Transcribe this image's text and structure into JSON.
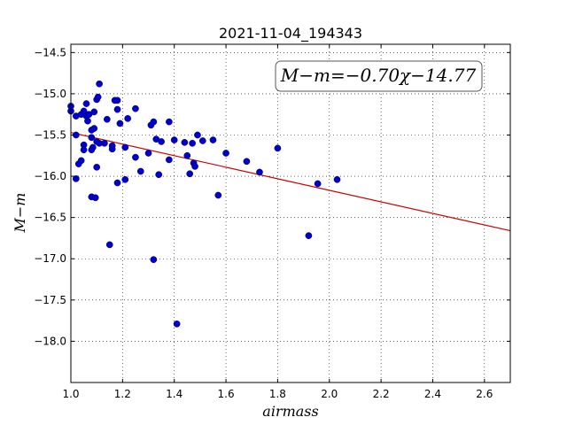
{
  "chart_data": {
    "type": "scatter",
    "title": "2021-11-04_194343",
    "xlabel": "airmass",
    "ylabel": "M−m",
    "xlim": [
      1.0,
      2.7
    ],
    "ylim": [
      -18.5,
      -14.4
    ],
    "x_ticks": [
      "1.0",
      "1.2",
      "1.4",
      "1.6",
      "1.8",
      "2.0",
      "2.2",
      "2.4",
      "2.6"
    ],
    "x_tick_values": [
      1.0,
      1.2,
      1.4,
      1.6,
      1.8,
      2.0,
      2.2,
      2.4,
      2.6
    ],
    "y_ticks": [
      "−14.5",
      "−15.0",
      "−15.5",
      "−16.0",
      "−16.5",
      "−17.0",
      "−17.5",
      "−18.0"
    ],
    "y_tick_values": [
      -14.5,
      -15.0,
      -15.5,
      -16.0,
      -16.5,
      -17.0,
      -17.5,
      -18.0
    ],
    "grid": true,
    "annotation": "M−m=−0.70χ−14.77",
    "fit": {
      "slope": -0.7,
      "intercept": -14.77,
      "color": "#cc0000"
    },
    "point_color": "#0000cc",
    "points": [
      {
        "x": 1.0,
        "y": -15.21
      },
      {
        "x": 1.0,
        "y": -15.15
      },
      {
        "x": 1.02,
        "y": -15.27
      },
      {
        "x": 1.04,
        "y": -15.25
      },
      {
        "x": 1.05,
        "y": -15.21
      },
      {
        "x": 1.06,
        "y": -15.12
      },
      {
        "x": 1.06,
        "y": -15.27
      },
      {
        "x": 1.065,
        "y": -15.33
      },
      {
        "x": 1.07,
        "y": -15.25
      },
      {
        "x": 1.08,
        "y": -15.44
      },
      {
        "x": 1.09,
        "y": -15.42
      },
      {
        "x": 1.09,
        "y": -15.22
      },
      {
        "x": 1.1,
        "y": -15.07
      },
      {
        "x": 1.105,
        "y": -15.04
      },
      {
        "x": 1.11,
        "y": -14.88
      },
      {
        "x": 1.02,
        "y": -15.5
      },
      {
        "x": 1.03,
        "y": -15.85
      },
      {
        "x": 1.04,
        "y": -15.81
      },
      {
        "x": 1.05,
        "y": -15.62
      },
      {
        "x": 1.05,
        "y": -15.68
      },
      {
        "x": 1.08,
        "y": -15.53
      },
      {
        "x": 1.08,
        "y": -15.68
      },
      {
        "x": 1.085,
        "y": -15.65
      },
      {
        "x": 1.1,
        "y": -15.58
      },
      {
        "x": 1.11,
        "y": -15.6
      },
      {
        "x": 1.13,
        "y": -15.6
      },
      {
        "x": 1.14,
        "y": -15.31
      },
      {
        "x": 1.16,
        "y": -15.63
      },
      {
        "x": 1.16,
        "y": -15.67
      },
      {
        "x": 1.17,
        "y": -15.08
      },
      {
        "x": 1.18,
        "y": -15.08
      },
      {
        "x": 1.18,
        "y": -15.19
      },
      {
        "x": 1.19,
        "y": -15.36
      },
      {
        "x": 1.21,
        "y": -15.65
      },
      {
        "x": 1.22,
        "y": -15.3
      },
      {
        "x": 1.25,
        "y": -15.18
      },
      {
        "x": 1.25,
        "y": -15.77
      },
      {
        "x": 1.02,
        "y": -16.03
      },
      {
        "x": 1.08,
        "y": -16.25
      },
      {
        "x": 1.095,
        "y": -16.26
      },
      {
        "x": 1.1,
        "y": -15.89
      },
      {
        "x": 1.15,
        "y": -16.83
      },
      {
        "x": 1.18,
        "y": -16.08
      },
      {
        "x": 1.21,
        "y": -16.04
      },
      {
        "x": 1.27,
        "y": -15.94
      },
      {
        "x": 1.3,
        "y": -15.72
      },
      {
        "x": 1.31,
        "y": -15.38
      },
      {
        "x": 1.32,
        "y": -15.34
      },
      {
        "x": 1.33,
        "y": -15.55
      },
      {
        "x": 1.34,
        "y": -15.98
      },
      {
        "x": 1.35,
        "y": -15.58
      },
      {
        "x": 1.32,
        "y": -17.01
      },
      {
        "x": 1.38,
        "y": -15.34
      },
      {
        "x": 1.38,
        "y": -15.8
      },
      {
        "x": 1.4,
        "y": -15.56
      },
      {
        "x": 1.41,
        "y": -17.79
      },
      {
        "x": 1.44,
        "y": -15.59
      },
      {
        "x": 1.45,
        "y": -15.75
      },
      {
        "x": 1.46,
        "y": -15.97
      },
      {
        "x": 1.47,
        "y": -15.6
      },
      {
        "x": 1.475,
        "y": -15.84
      },
      {
        "x": 1.48,
        "y": -15.88
      },
      {
        "x": 1.49,
        "y": -15.5
      },
      {
        "x": 1.51,
        "y": -15.57
      },
      {
        "x": 1.55,
        "y": -15.56
      },
      {
        "x": 1.57,
        "y": -16.23
      },
      {
        "x": 1.6,
        "y": -15.72
      },
      {
        "x": 1.68,
        "y": -15.82
      },
      {
        "x": 1.73,
        "y": -15.95
      },
      {
        "x": 1.8,
        "y": -15.66
      },
      {
        "x": 1.92,
        "y": -16.72
      },
      {
        "x": 1.955,
        "y": -16.09
      },
      {
        "x": 2.03,
        "y": -16.04
      }
    ]
  }
}
